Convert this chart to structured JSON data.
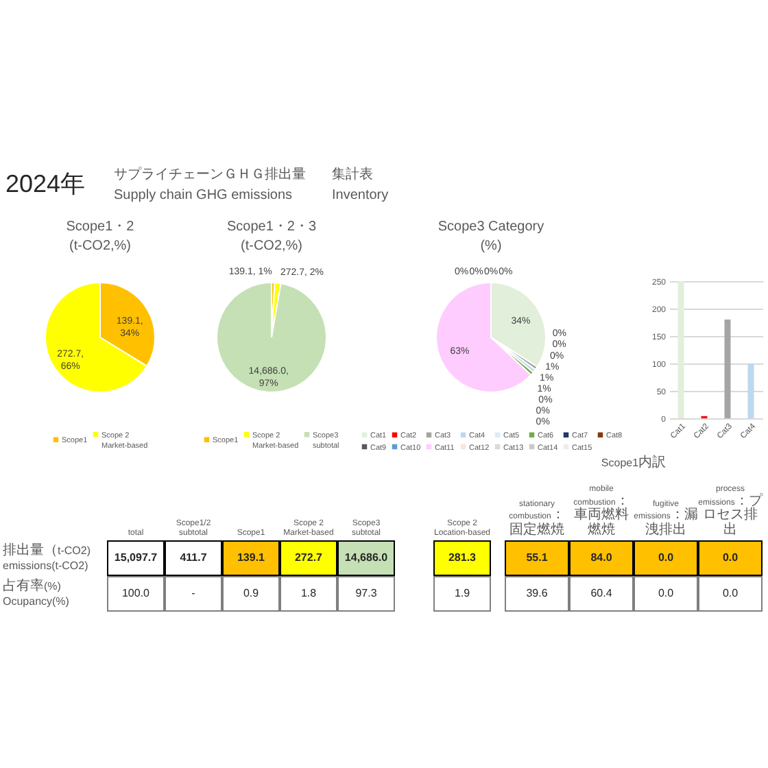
{
  "chart_data": [
    {
      "type": "other",
      "title": "2024年",
      "annotations": [
        "サプライチェーンＧＨＧ排出量",
        "集計表",
        "Supply chain GHG emissions",
        "Inventory"
      ]
    },
    {
      "type": "pie",
      "title": "Scope1・2",
      "subtitle": "(t-CO2,%)",
      "categories": [
        "Scope1",
        "Scope 2 Market-based"
      ],
      "values": [
        139.1,
        272.7
      ],
      "colors": [
        "#ffc000",
        "#ffff00"
      ],
      "value_labels": [
        "139.1, 34%",
        "272.7, 66%"
      ],
      "legend": "bottom"
    },
    {
      "type": "pie",
      "title": "Scope1・2・3",
      "subtitle": "(t-CO2,%)",
      "categories": [
        "Scope1",
        "Scope 2 Market-based",
        "Scope3 subtotal"
      ],
      "values": [
        139.1,
        272.7,
        14686.0
      ],
      "colors": [
        "#ffc000",
        "#ffff00",
        "#c5e0b4"
      ],
      "value_labels": [
        "139.1, 1%",
        "272.7, 2%",
        "14,686.0, 97%"
      ],
      "legend": "bottom"
    },
    {
      "type": "pie",
      "title": "Scope3 Category",
      "subtitle": "(%)",
      "categories": [
        "Cat1",
        "Cat2",
        "Cat3",
        "Cat4",
        "Cat5",
        "Cat6",
        "Cat7",
        "Cat8",
        "Cat9",
        "Cat10",
        "Cat11",
        "Cat12",
        "Cat13",
        "Cat14",
        "Cat15"
      ],
      "values": [
        34,
        0,
        1,
        1,
        0,
        1,
        0,
        0,
        0,
        0,
        63,
        0,
        0,
        0,
        0
      ],
      "colors": [
        "#e2efda",
        "#ff0000",
        "#a5a5a5",
        "#bdd7ee",
        "#ddebf7",
        "#70ad47",
        "#203864",
        "#843c0c",
        "#595959",
        "#5b9bd5",
        "#ffccff",
        "#fbe5d6",
        "#d9d9d9",
        "#c9c9c9",
        "#ededed"
      ],
      "value_labels": [
        "34%",
        "0%",
        "1%",
        "1%",
        "0%",
        "1%",
        "0%",
        "0%",
        "0%",
        "0%",
        "63%",
        "0%",
        "0%",
        "0%",
        "0%"
      ],
      "legend": "bottom"
    },
    {
      "type": "bar",
      "categories": [
        "Cat1",
        "Cat2",
        "Cat3",
        "Cat4"
      ],
      "values": [
        250,
        4,
        180,
        100
      ],
      "colors": [
        "#e2efda",
        "#ff0000",
        "#a5a5a5",
        "#bdd7ee"
      ],
      "ylim": [
        0,
        250
      ],
      "yticks": [
        0,
        50,
        100,
        150,
        200,
        250
      ],
      "grid": "y"
    },
    {
      "type": "other",
      "categories": [
        "total",
        "Scope1/2 subtotal",
        "Scope1",
        "Scope 2 Market-based",
        "Scope3 subtotal"
      ],
      "y_categories": [
        "排出量（t-CO2)\nemissions(t-CO2)",
        "占有率(%)\nOcupancy(%)"
      ],
      "cell_labels": [
        [
          "15,097.7",
          "411.7",
          "139.1",
          "272.7",
          "14,686.0"
        ],
        [
          "100.0",
          "-",
          "0.9",
          "1.8",
          "97.3"
        ]
      ],
      "colors": [
        [
          "#ffffff",
          "#ffffff",
          "#ffc000",
          "#ffff00",
          "#c5e0b4"
        ],
        [
          null,
          null,
          null,
          null,
          null
        ]
      ]
    },
    {
      "type": "other",
      "categories": [
        "Scope 2 Location-based"
      ],
      "cell_labels": [
        [
          "281.3"
        ],
        [
          "1.9"
        ]
      ],
      "colors": [
        [
          "#ffff00"
        ],
        [
          null
        ]
      ]
    },
    {
      "type": "other",
      "title": "Scope1内訳",
      "categories": [
        "stationary combustion：固定燃焼",
        "mobile combustion：車両燃料燃焼",
        "fugitive emissions：漏洩排出",
        "process emissions：プロセス排出"
      ],
      "cell_labels": [
        [
          "55.1",
          "84.0",
          "0.0",
          "0.0"
        ],
        [
          "39.6",
          "60.4",
          "0.0",
          "0.0"
        ]
      ],
      "colors": [
        [
          "#ffc000",
          "#ffc000",
          "#ffc000",
          "#ffc000"
        ],
        [
          null,
          null,
          null,
          null
        ]
      ]
    }
  ]
}
